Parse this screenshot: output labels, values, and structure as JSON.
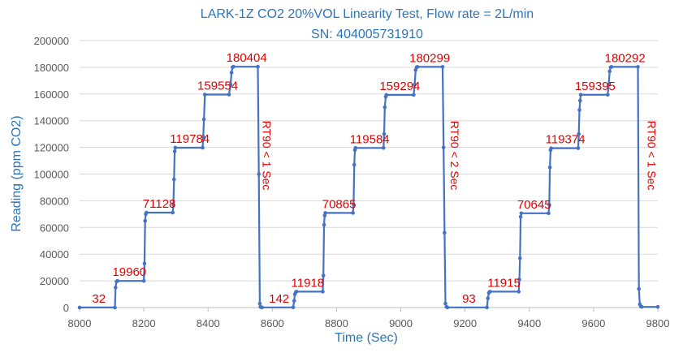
{
  "chart_data": {
    "type": "line",
    "title": "LARK-1Z CO2 20%VOL Linearity Test, Flow rate = 2L/min",
    "subtitle": "SN: 404005731910",
    "xlabel": "Time (Sec)",
    "ylabel": "Reading (ppm CO2)",
    "xlim": [
      8000,
      9800
    ],
    "ylim": [
      0,
      200000
    ],
    "xticks": [
      8000,
      8200,
      8400,
      8600,
      8800,
      9000,
      9200,
      9400,
      9600,
      9800
    ],
    "yticks": [
      0,
      20000,
      40000,
      60000,
      80000,
      100000,
      120000,
      140000,
      160000,
      180000,
      200000
    ],
    "grid": "horizontal",
    "color": "#4472c4",
    "label_color": "#e00000",
    "series": [
      {
        "x": [
          8000,
          8110,
          8112,
          8115,
          8118,
          8200,
          8202,
          8204,
          8206,
          8208,
          8290,
          8292,
          8294,
          8296,
          8298,
          8383,
          8385,
          8387,
          8390,
          8465,
          8470,
          8473,
          8476,
          8479,
          8555,
          8558,
          8561,
          8563,
          8566,
          8568,
          8665,
          8668,
          8670,
          8673,
          8675,
          8757,
          8759,
          8761,
          8763,
          8765,
          8851,
          8853,
          8855,
          8857,
          8859,
          8946,
          8948,
          8950,
          8953,
          8955,
          9040,
          9043,
          9046,
          9049,
          9052,
          9130,
          9133,
          9136,
          9139,
          9142,
          9145,
          9268,
          9271,
          9274,
          9276,
          9278,
          9367,
          9369,
          9371,
          9373,
          9375,
          9460,
          9462,
          9464,
          9466,
          9468,
          9552,
          9554,
          9556,
          9558,
          9560,
          9644,
          9647,
          9650,
          9653,
          9656,
          9738,
          9741,
          9744,
          9747,
          9750,
          9800
        ],
        "y": [
          32,
          32,
          15000,
          19500,
          19960,
          19960,
          33000,
          65000,
          70000,
          71128,
          71128,
          77000,
          96000,
          117000,
          119784,
          119784,
          128000,
          141000,
          159554,
          159554,
          167000,
          176000,
          180000,
          180404,
          180404,
          100000,
          3000,
          500,
          142,
          142,
          142,
          5000,
          10000,
          11500,
          11918,
          11918,
          24000,
          62000,
          69000,
          70865,
          70865,
          77000,
          107000,
          118000,
          119584,
          119584,
          130000,
          150000,
          158000,
          159294,
          159294,
          167000,
          178000,
          180000,
          180299,
          180299,
          120000,
          56000,
          3000,
          500,
          93,
          93,
          7000,
          11000,
          11600,
          11915,
          11915,
          21000,
          37000,
          68000,
          70645,
          70645,
          77000,
          105000,
          118000,
          119374,
          119374,
          130000,
          148000,
          155000,
          159395,
          159395,
          167000,
          177000,
          180000,
          180292,
          180292,
          14000,
          2500,
          800,
          500,
          500
        ]
      }
    ],
    "data_labels": [
      {
        "text": "32",
        "x": 8060,
        "y": 32
      },
      {
        "text": "19960",
        "x": 8155,
        "y": 19960
      },
      {
        "text": "71128",
        "x": 8248,
        "y": 71128
      },
      {
        "text": "119784",
        "x": 8343,
        "y": 119784
      },
      {
        "text": "159554",
        "x": 8430,
        "y": 159554
      },
      {
        "text": "180404",
        "x": 8520,
        "y": 180404
      },
      {
        "text": "142",
        "x": 8621,
        "y": 142
      },
      {
        "text": "11918",
        "x": 8710,
        "y": 11918
      },
      {
        "text": "70865",
        "x": 8808,
        "y": 70865
      },
      {
        "text": "119584",
        "x": 8903,
        "y": 119584
      },
      {
        "text": "159294",
        "x": 8997,
        "y": 159294
      },
      {
        "text": "180299",
        "x": 9090,
        "y": 180299
      },
      {
        "text": "93",
        "x": 9212,
        "y": 93
      },
      {
        "text": "11915",
        "x": 9321,
        "y": 11915
      },
      {
        "text": "70645",
        "x": 9415,
        "y": 70645
      },
      {
        "text": "119374",
        "x": 9512,
        "y": 119374
      },
      {
        "text": "159395",
        "x": 9605,
        "y": 159395
      },
      {
        "text": "180292",
        "x": 9698,
        "y": 180292
      }
    ],
    "annotations": [
      {
        "text": "RT90 < 1 Sec",
        "x": 8570,
        "y": 140000,
        "rotation": 90
      },
      {
        "text": "RT90 < 2 Sec",
        "x": 9155,
        "y": 140000,
        "rotation": 90
      },
      {
        "text": "RT90 < 1 Sec",
        "x": 9768,
        "y": 140000,
        "rotation": 90
      }
    ]
  }
}
